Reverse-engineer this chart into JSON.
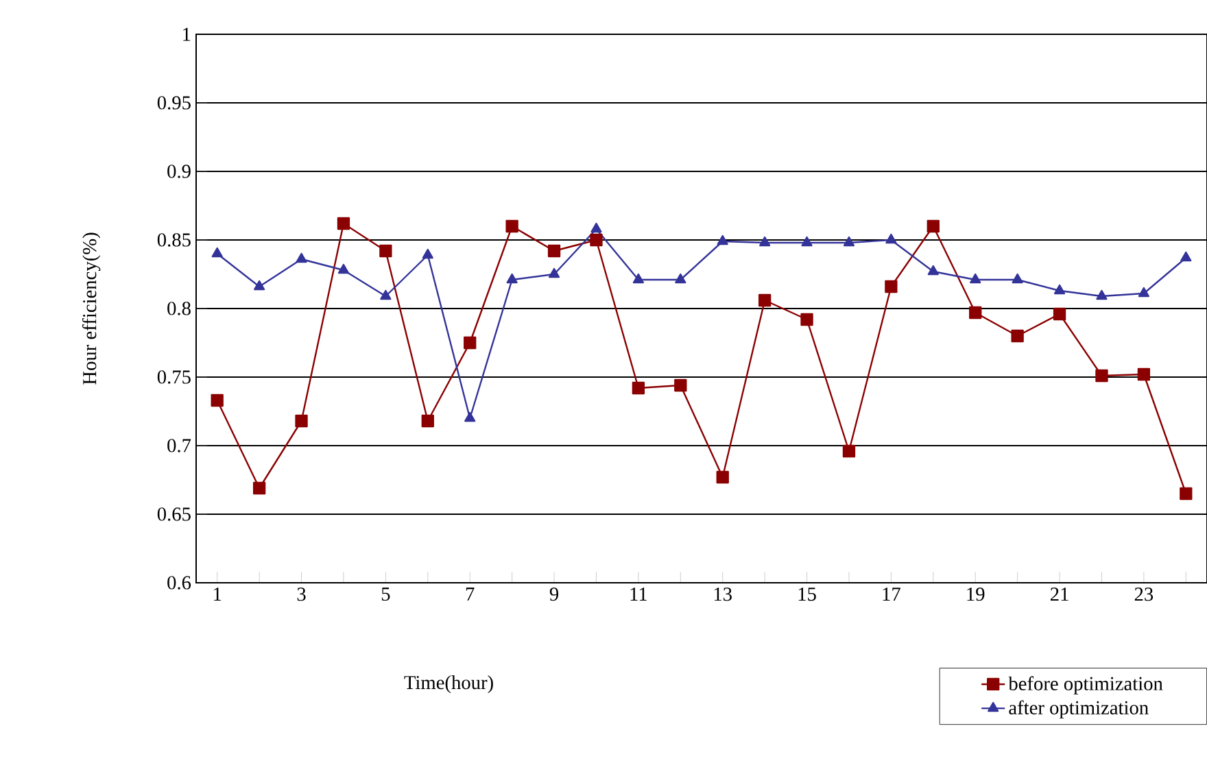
{
  "chart_data": {
    "type": "line",
    "xlabel": "Time(hour)",
    "ylabel": "Hour efficiency(%)",
    "x": [
      1,
      2,
      3,
      4,
      5,
      6,
      7,
      8,
      9,
      10,
      11,
      12,
      13,
      14,
      15,
      16,
      17,
      18,
      19,
      20,
      21,
      22,
      23,
      24
    ],
    "xlim": [
      0.5,
      24.5
    ],
    "xticks": [
      1,
      {
        "value": 2,
        "label": null
      },
      3,
      {
        "value": 4,
        "label": null
      },
      5,
      {
        "value": 6,
        "label": null
      },
      7,
      {
        "value": 8,
        "label": null
      },
      9,
      {
        "value": 10,
        "label": null
      },
      11,
      {
        "value": 12,
        "label": null
      },
      13,
      {
        "value": 14,
        "label": null
      },
      15,
      {
        "value": 16,
        "label": null
      },
      17,
      {
        "value": 18,
        "label": null
      },
      19,
      {
        "value": 20,
        "label": null
      },
      21,
      {
        "value": 22,
        "label": null
      },
      23,
      {
        "value": 24,
        "label": null
      }
    ],
    "ylim": [
      0.6,
      1
    ],
    "yticks": [
      0.6,
      0.65,
      0.7,
      0.75,
      0.8,
      0.85,
      0.9,
      0.95,
      1
    ],
    "grid": "y",
    "legend": "bottom right",
    "line_style": "solid",
    "series": [
      {
        "name": "before optimization",
        "color": "#8b0000",
        "marker": "square",
        "values": [
          0.733,
          0.669,
          0.718,
          0.862,
          0.842,
          0.718,
          0.775,
          0.86,
          0.842,
          0.85,
          0.742,
          0.744,
          0.677,
          0.806,
          0.792,
          0.696,
          0.816,
          0.86,
          0.797,
          0.78,
          0.796,
          0.751,
          0.752,
          0.665
        ]
      },
      {
        "name": "after optimization",
        "color": "#333399",
        "marker": "triangle",
        "values": [
          0.84,
          0.816,
          0.836,
          0.828,
          0.809,
          0.839,
          0.72,
          0.821,
          0.825,
          0.858,
          0.821,
          0.821,
          0.849,
          0.848,
          0.848,
          0.848,
          0.85,
          0.827,
          0.821,
          0.821,
          0.813,
          0.809,
          0.811,
          0.837
        ]
      }
    ]
  }
}
